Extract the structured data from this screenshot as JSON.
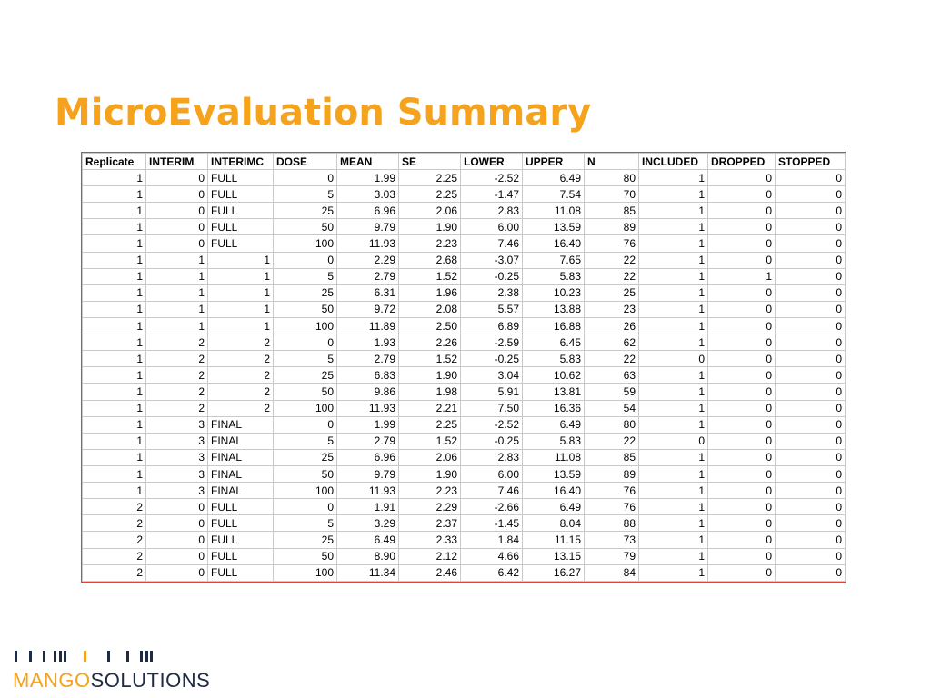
{
  "slide": {
    "title": "MicroEvaluation Summary"
  },
  "table": {
    "headers": [
      "Replicate",
      "INTERIM",
      "INTERIMC",
      "DOSE",
      "MEAN",
      "SE",
      "LOWER",
      "UPPER",
      "N",
      "INCLUDED",
      "DROPPED",
      "STOPPED"
    ],
    "rows": [
      [
        "1",
        "0",
        "FULL",
        "0",
        "1.99",
        "2.25",
        "-2.52",
        "6.49",
        "80",
        "1",
        "0",
        "0"
      ],
      [
        "1",
        "0",
        "FULL",
        "5",
        "3.03",
        "2.25",
        "-1.47",
        "7.54",
        "70",
        "1",
        "0",
        "0"
      ],
      [
        "1",
        "0",
        "FULL",
        "25",
        "6.96",
        "2.06",
        "2.83",
        "11.08",
        "85",
        "1",
        "0",
        "0"
      ],
      [
        "1",
        "0",
        "FULL",
        "50",
        "9.79",
        "1.90",
        "6.00",
        "13.59",
        "89",
        "1",
        "0",
        "0"
      ],
      [
        "1",
        "0",
        "FULL",
        "100",
        "11.93",
        "2.23",
        "7.46",
        "16.40",
        "76",
        "1",
        "0",
        "0"
      ],
      [
        "1",
        "1",
        "1",
        "0",
        "2.29",
        "2.68",
        "-3.07",
        "7.65",
        "22",
        "1",
        "0",
        "0"
      ],
      [
        "1",
        "1",
        "1",
        "5",
        "2.79",
        "1.52",
        "-0.25",
        "5.83",
        "22",
        "1",
        "1",
        "0"
      ],
      [
        "1",
        "1",
        "1",
        "25",
        "6.31",
        "1.96",
        "2.38",
        "10.23",
        "25",
        "1",
        "0",
        "0"
      ],
      [
        "1",
        "1",
        "1",
        "50",
        "9.72",
        "2.08",
        "5.57",
        "13.88",
        "23",
        "1",
        "0",
        "0"
      ],
      [
        "1",
        "1",
        "1",
        "100",
        "11.89",
        "2.50",
        "6.89",
        "16.88",
        "26",
        "1",
        "0",
        "0"
      ],
      [
        "1",
        "2",
        "2",
        "0",
        "1.93",
        "2.26",
        "-2.59",
        "6.45",
        "62",
        "1",
        "0",
        "0"
      ],
      [
        "1",
        "2",
        "2",
        "5",
        "2.79",
        "1.52",
        "-0.25",
        "5.83",
        "22",
        "0",
        "0",
        "0"
      ],
      [
        "1",
        "2",
        "2",
        "25",
        "6.83",
        "1.90",
        "3.04",
        "10.62",
        "63",
        "1",
        "0",
        "0"
      ],
      [
        "1",
        "2",
        "2",
        "50",
        "9.86",
        "1.98",
        "5.91",
        "13.81",
        "59",
        "1",
        "0",
        "0"
      ],
      [
        "1",
        "2",
        "2",
        "100",
        "11.93",
        "2.21",
        "7.50",
        "16.36",
        "54",
        "1",
        "0",
        "0"
      ],
      [
        "1",
        "3",
        "FINAL",
        "0",
        "1.99",
        "2.25",
        "-2.52",
        "6.49",
        "80",
        "1",
        "0",
        "0"
      ],
      [
        "1",
        "3",
        "FINAL",
        "5",
        "2.79",
        "1.52",
        "-0.25",
        "5.83",
        "22",
        "0",
        "0",
        "0"
      ],
      [
        "1",
        "3",
        "FINAL",
        "25",
        "6.96",
        "2.06",
        "2.83",
        "11.08",
        "85",
        "1",
        "0",
        "0"
      ],
      [
        "1",
        "3",
        "FINAL",
        "50",
        "9.79",
        "1.90",
        "6.00",
        "13.59",
        "89",
        "1",
        "0",
        "0"
      ],
      [
        "1",
        "3",
        "FINAL",
        "100",
        "11.93",
        "2.23",
        "7.46",
        "16.40",
        "76",
        "1",
        "0",
        "0"
      ],
      [
        "2",
        "0",
        "FULL",
        "0",
        "1.91",
        "2.29",
        "-2.66",
        "6.49",
        "76",
        "1",
        "0",
        "0"
      ],
      [
        "2",
        "0",
        "FULL",
        "5",
        "3.29",
        "2.37",
        "-1.45",
        "8.04",
        "88",
        "1",
        "0",
        "0"
      ],
      [
        "2",
        "0",
        "FULL",
        "25",
        "6.49",
        "2.33",
        "1.84",
        "11.15",
        "73",
        "1",
        "0",
        "0"
      ],
      [
        "2",
        "0",
        "FULL",
        "50",
        "8.90",
        "2.12",
        "4.66",
        "13.15",
        "79",
        "1",
        "0",
        "0"
      ],
      [
        "2",
        "0",
        "FULL",
        "100",
        "11.34",
        "2.46",
        "6.42",
        "16.27",
        "84",
        "1",
        "0",
        "0"
      ]
    ]
  },
  "logo": {
    "icon": "barcode-logo-icon",
    "part1": "MANGO",
    "part2": "SOLUTIONS",
    "color_primary": "#f5a21c",
    "color_secondary": "#1f2a44"
  },
  "colors": {
    "title": "#f5a21c",
    "table_border": "#e0403a",
    "grid": "#c9c9c9"
  }
}
